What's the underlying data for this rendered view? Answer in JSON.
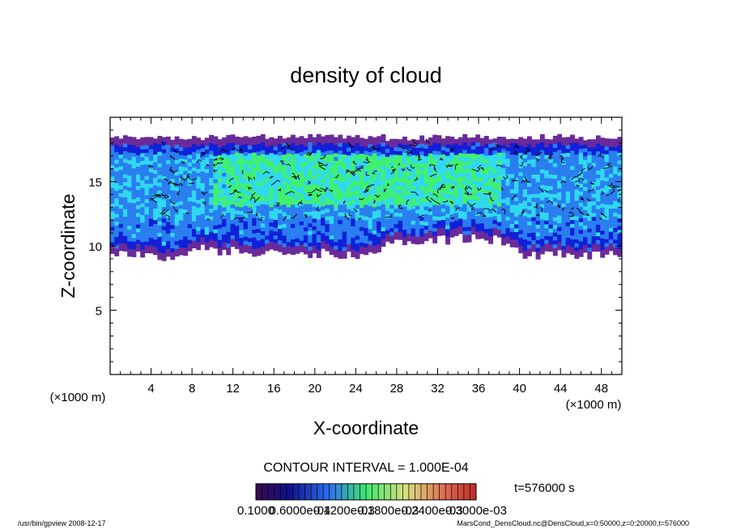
{
  "chart_data": {
    "type": "heatmap",
    "title": "density of cloud",
    "xlabel": "X-coordinate",
    "ylabel": "Z-coordinate",
    "x_unit": "(×1000 m)",
    "y_unit": "(×1000 m)",
    "xlim": [
      0,
      50
    ],
    "ylim": [
      0,
      20
    ],
    "x_ticks": [
      4,
      8,
      12,
      16,
      20,
      24,
      28,
      32,
      36,
      40,
      44,
      48
    ],
    "y_ticks": [
      5,
      10,
      15
    ],
    "x_tick_labels": [
      "4",
      "8",
      "12",
      "16",
      "20",
      "24",
      "28",
      "32",
      "36",
      "40",
      "44",
      "48"
    ],
    "y_tick_labels": [
      "5",
      "10",
      "15"
    ],
    "contour_interval_text": "CONTOUR INTERVAL = 1.000E-04",
    "time_label": "t=576000 s",
    "colorbar_labels": [
      "0.1000",
      "0.6000e-04",
      "0.1200e-03",
      "0.1800e-03",
      "0.2400e-03",
      "0.3000e-03"
    ],
    "cloud_region": {
      "x_range": [
        0,
        50
      ],
      "z_top": 18.3,
      "z_bottom_profile": [
        {
          "x": 0,
          "z": 9.3
        },
        {
          "x": 6,
          "z": 9.2
        },
        {
          "x": 8,
          "z": 9.8
        },
        {
          "x": 12,
          "z": 9.6
        },
        {
          "x": 24,
          "z": 9.4
        },
        {
          "x": 28,
          "z": 10.2
        },
        {
          "x": 34,
          "z": 10.6
        },
        {
          "x": 38,
          "z": 10.5
        },
        {
          "x": 40,
          "z": 9.3
        },
        {
          "x": 50,
          "z": 9.4
        }
      ],
      "peak_density_x_range": [
        10,
        38
      ],
      "peak_density_z_range": [
        13,
        17
      ]
    },
    "colors": {
      "low": "#6a2a9a",
      "mid_low": "#1020d8",
      "mid": "#2a7ef0",
      "mid_high": "#30d8f0",
      "high": "#40f070"
    }
  },
  "footer": {
    "left": "/usr/bin/gpview  2008-12-17",
    "right": "MarsCond_DensCloud.nc@DensCloud,x=0:50000,z=0:20000,t=576000"
  }
}
